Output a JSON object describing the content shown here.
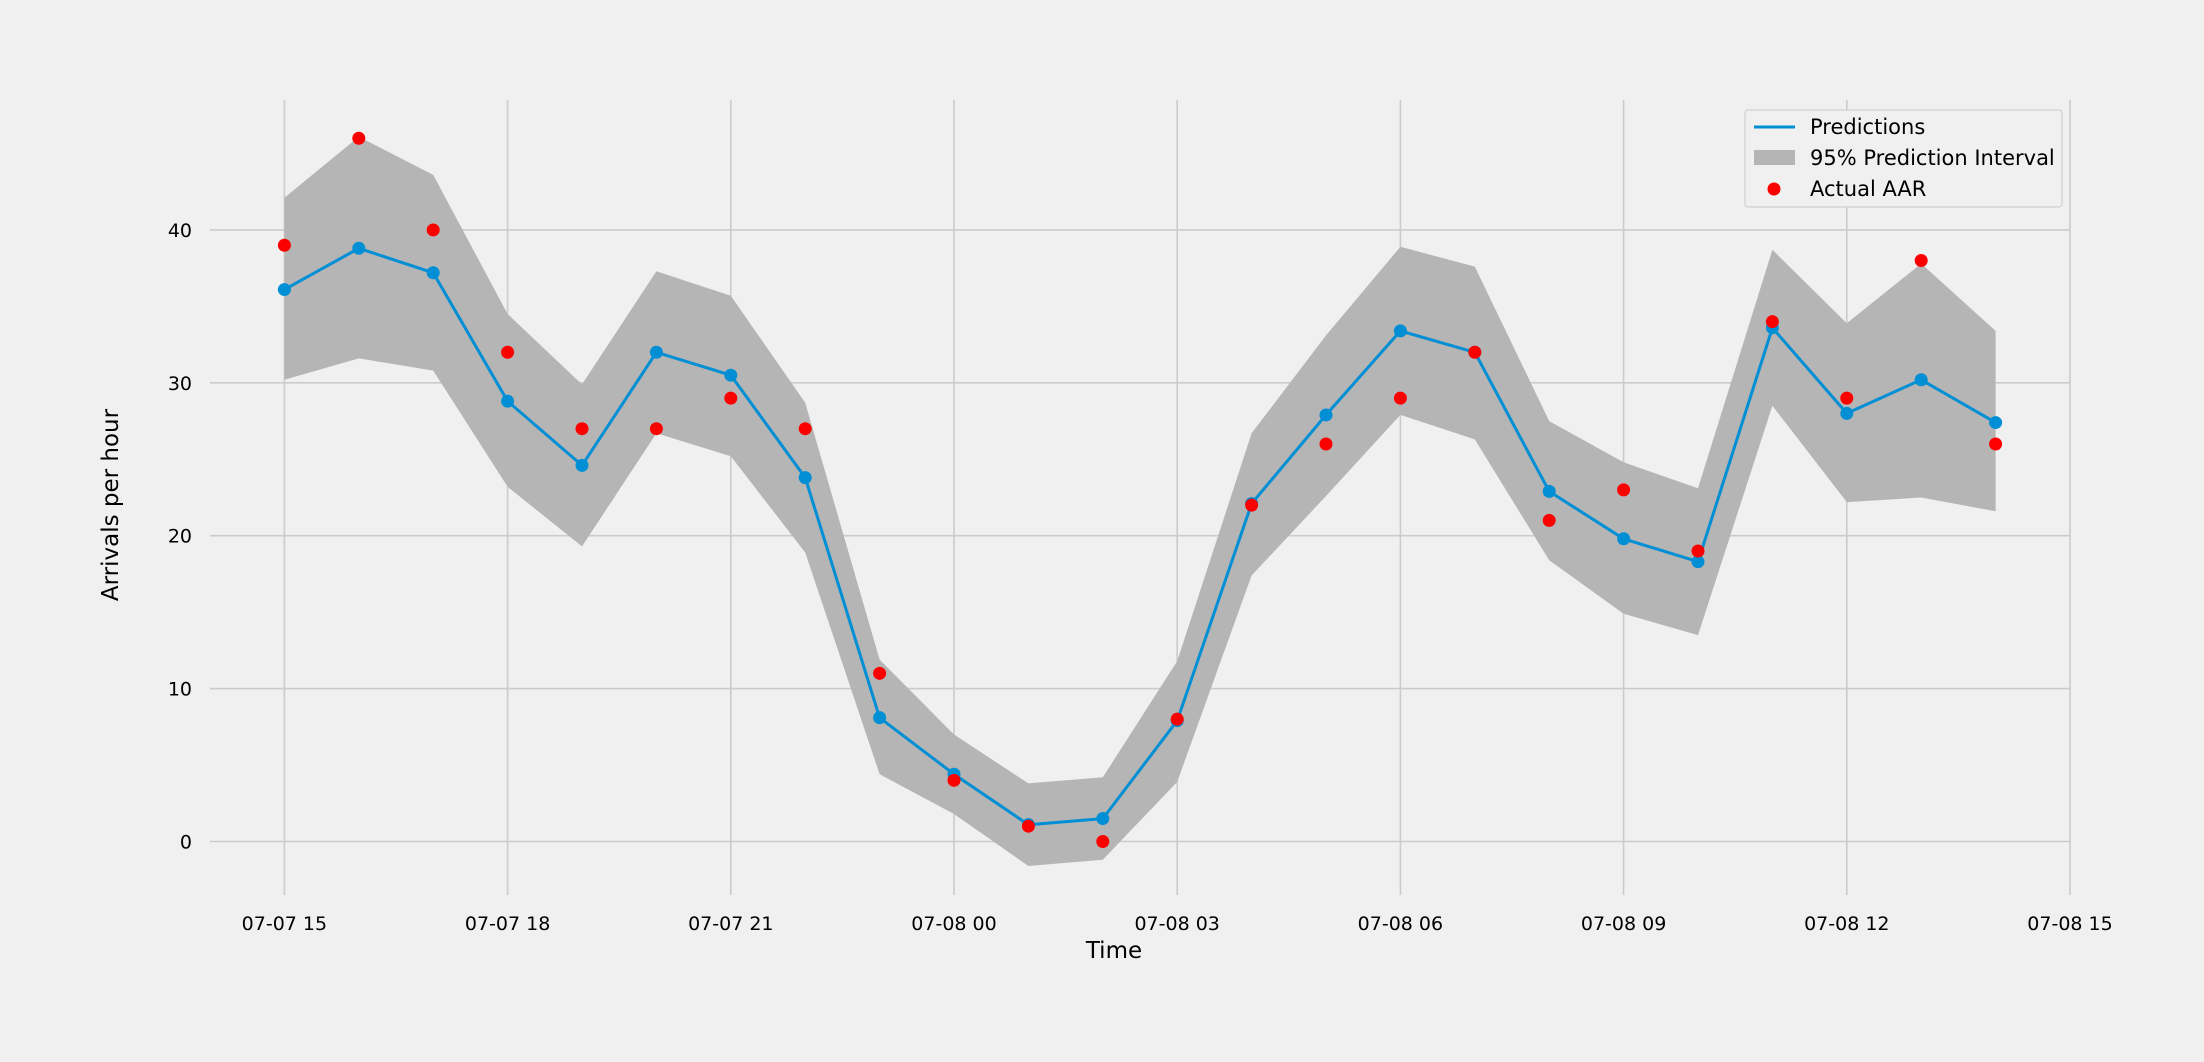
{
  "chart_data": {
    "type": "line",
    "xlabel": "Time",
    "ylabel": "Arrivals per hour",
    "x": [
      "07-07 15:00",
      "07-07 16:00",
      "07-07 17:00",
      "07-07 18:00",
      "07-07 19:00",
      "07-07 20:00",
      "07-07 21:00",
      "07-07 22:00",
      "07-07 23:00",
      "07-08 00:00",
      "07-08 01:00",
      "07-08 02:00",
      "07-08 03:00",
      "07-08 04:00",
      "07-08 05:00",
      "07-08 06:00",
      "07-08 07:00",
      "07-08 08:00",
      "07-08 09:00",
      "07-08 10:00",
      "07-08 11:00",
      "07-08 12:00",
      "07-08 13:00",
      "07-08 14:00"
    ],
    "x_ticks": [
      "07-07 15",
      "07-07 18",
      "07-07 21",
      "07-08 00",
      "07-08 03",
      "07-08 06",
      "07-08 09",
      "07-08 12",
      "07-08 15"
    ],
    "xlim": [
      "07-07 14:00",
      "07-08 15:00"
    ],
    "y_ticks": [
      0,
      10,
      20,
      30,
      40
    ],
    "ylim": [
      -3.5,
      48.5
    ],
    "grid": true,
    "legend_position": "top-right",
    "series": [
      {
        "name": "Predictions",
        "type": "line",
        "color": "#008fd5",
        "values": [
          36.1,
          38.8,
          37.2,
          28.8,
          24.6,
          32.0,
          30.5,
          23.8,
          8.1,
          4.4,
          1.1,
          1.5,
          7.9,
          22.1,
          27.9,
          33.4,
          32.0,
          22.9,
          19.8,
          18.3,
          33.6,
          28.0,
          30.2,
          27.4
        ]
      },
      {
        "name": "95% Prediction Interval",
        "type": "band",
        "color": "#b5b5b5",
        "lower": [
          30.2,
          31.6,
          30.8,
          23.2,
          19.3,
          26.7,
          25.2,
          18.9,
          4.4,
          1.8,
          -1.6,
          -1.2,
          3.9,
          17.4,
          22.6,
          27.9,
          26.3,
          18.4,
          14.9,
          13.5,
          28.5,
          22.2,
          22.5,
          21.6
        ],
        "upper": [
          42.1,
          46.1,
          43.6,
          34.5,
          29.9,
          37.3,
          35.7,
          28.7,
          11.9,
          7.0,
          3.8,
          4.2,
          11.8,
          26.7,
          33.1,
          38.9,
          37.6,
          27.5,
          24.8,
          23.1,
          38.7,
          33.9,
          37.8,
          33.4
        ]
      },
      {
        "name": "Actual AAR",
        "type": "scatter",
        "color": "#fc0000",
        "values": [
          39,
          46,
          40,
          32,
          27,
          27,
          29,
          27,
          11,
          4,
          1,
          0,
          8,
          22,
          26,
          29,
          32,
          21,
          23,
          19,
          34,
          29,
          38,
          26
        ]
      }
    ]
  }
}
